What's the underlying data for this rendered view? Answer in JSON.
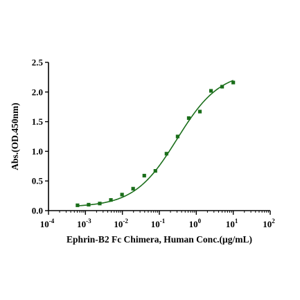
{
  "chart_data": {
    "type": "scatter",
    "title": "",
    "xlabel": "Ephrin-B2 Fc Chimera, Human Conc.(μg/mL)",
    "ylabel": "Abs.(OD.450nm)",
    "xscale": "log",
    "xlim": [
      0.0001,
      100
    ],
    "ylim": [
      0,
      2.5
    ],
    "grid": false,
    "legend": "none",
    "x_tick_labels": [
      {
        "base": "10",
        "exp": "-4"
      },
      {
        "base": "10",
        "exp": "-3"
      },
      {
        "base": "10",
        "exp": "-2"
      },
      {
        "base": "10",
        "exp": "-1"
      },
      {
        "base": "10",
        "exp": "0"
      },
      {
        "base": "10",
        "exp": "1"
      },
      {
        "base": "10",
        "exp": "2"
      }
    ],
    "y_tick_labels": [
      "0.0",
      "0.5",
      "1.0",
      "1.5",
      "2.0",
      "2.5"
    ],
    "series": [
      {
        "color": "#1a6e1a",
        "marker": "square",
        "x": [
          0.00061,
          0.00122,
          0.00244,
          0.00488,
          0.00977,
          0.0195,
          0.0391,
          0.0781,
          0.156,
          0.3125,
          0.625,
          1.25,
          2.5,
          5,
          10
        ],
        "y": [
          0.09,
          0.1,
          0.12,
          0.18,
          0.27,
          0.37,
          0.59,
          0.67,
          0.96,
          1.25,
          1.56,
          1.67,
          2.02,
          2.09,
          2.16
        ]
      }
    ],
    "fit_curve": {
      "type": "4PL",
      "color": "#1a6e1a",
      "bottom": 0.06,
      "top": 2.35,
      "ec50": 0.3,
      "hill": 0.75
    }
  }
}
